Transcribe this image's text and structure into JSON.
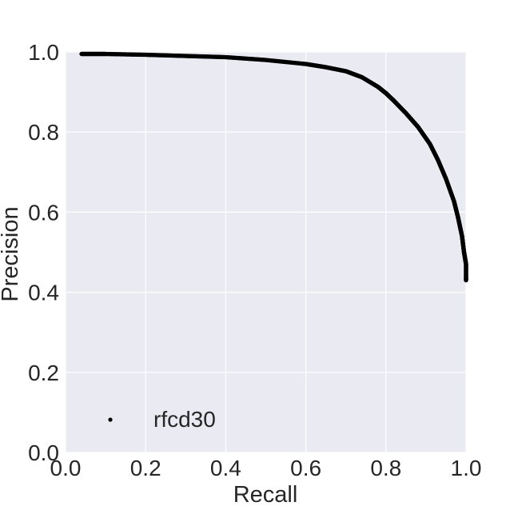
{
  "chart_data": {
    "type": "scatter",
    "title": "",
    "xlabel": "Recall",
    "ylabel": "Precision",
    "xlim": [
      0.0,
      1.0
    ],
    "ylim": [
      0.0,
      1.0
    ],
    "xticks": [
      "0.0",
      "0.2",
      "0.4",
      "0.6",
      "0.8",
      "1.0"
    ],
    "yticks": [
      "0.0",
      "0.2",
      "0.4",
      "0.6",
      "0.8",
      "1.0"
    ],
    "grid": true,
    "legend_position": "lower-left",
    "series": [
      {
        "name": "rfcd30",
        "color": "#000000",
        "x": [
          0.04,
          0.1,
          0.2,
          0.3,
          0.4,
          0.5,
          0.6,
          0.65,
          0.7,
          0.74,
          0.78,
          0.8,
          0.82,
          0.85,
          0.88,
          0.91,
          0.93,
          0.95,
          0.97,
          0.98,
          0.99,
          0.995,
          1.0,
          1.0
        ],
        "y": [
          0.995,
          0.995,
          0.993,
          0.99,
          0.987,
          0.98,
          0.97,
          0.962,
          0.952,
          0.937,
          0.913,
          0.897,
          0.878,
          0.847,
          0.813,
          0.77,
          0.73,
          0.683,
          0.627,
          0.587,
          0.54,
          0.5,
          0.47,
          0.43
        ]
      }
    ]
  }
}
